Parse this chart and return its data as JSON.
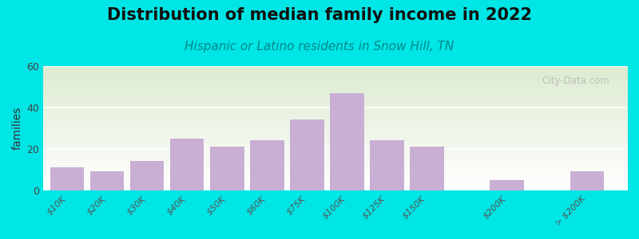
{
  "title": "Distribution of median family income in 2022",
  "subtitle": "Hispanic or Latino residents in Snow Hill, TN",
  "ylabel": "families",
  "categories": [
    "$10K",
    "$20K",
    "$30K",
    "$40K",
    "$50K",
    "$60K",
    "$75K",
    "$100K",
    "$125K",
    "$150K",
    "$200K",
    "> $200K"
  ],
  "values": [
    11,
    9,
    14,
    25,
    21,
    24,
    34,
    47,
    24,
    21,
    5,
    9
  ],
  "x_positions": [
    0,
    1,
    2,
    3,
    4,
    5,
    6,
    7,
    8,
    9,
    11,
    13
  ],
  "bar_color": "#c9afd4",
  "background_outer": "#00e5e5",
  "background_inner_top": "#ddebd0",
  "background_inner_bottom": "#ffffff",
  "ylim": [
    0,
    60
  ],
  "yticks": [
    0,
    20,
    40,
    60
  ],
  "xlim": [
    -0.6,
    14.0
  ],
  "title_fontsize": 15,
  "subtitle_fontsize": 11,
  "ylabel_fontsize": 10,
  "watermark": "City-Data.com",
  "bar_width": 0.85
}
